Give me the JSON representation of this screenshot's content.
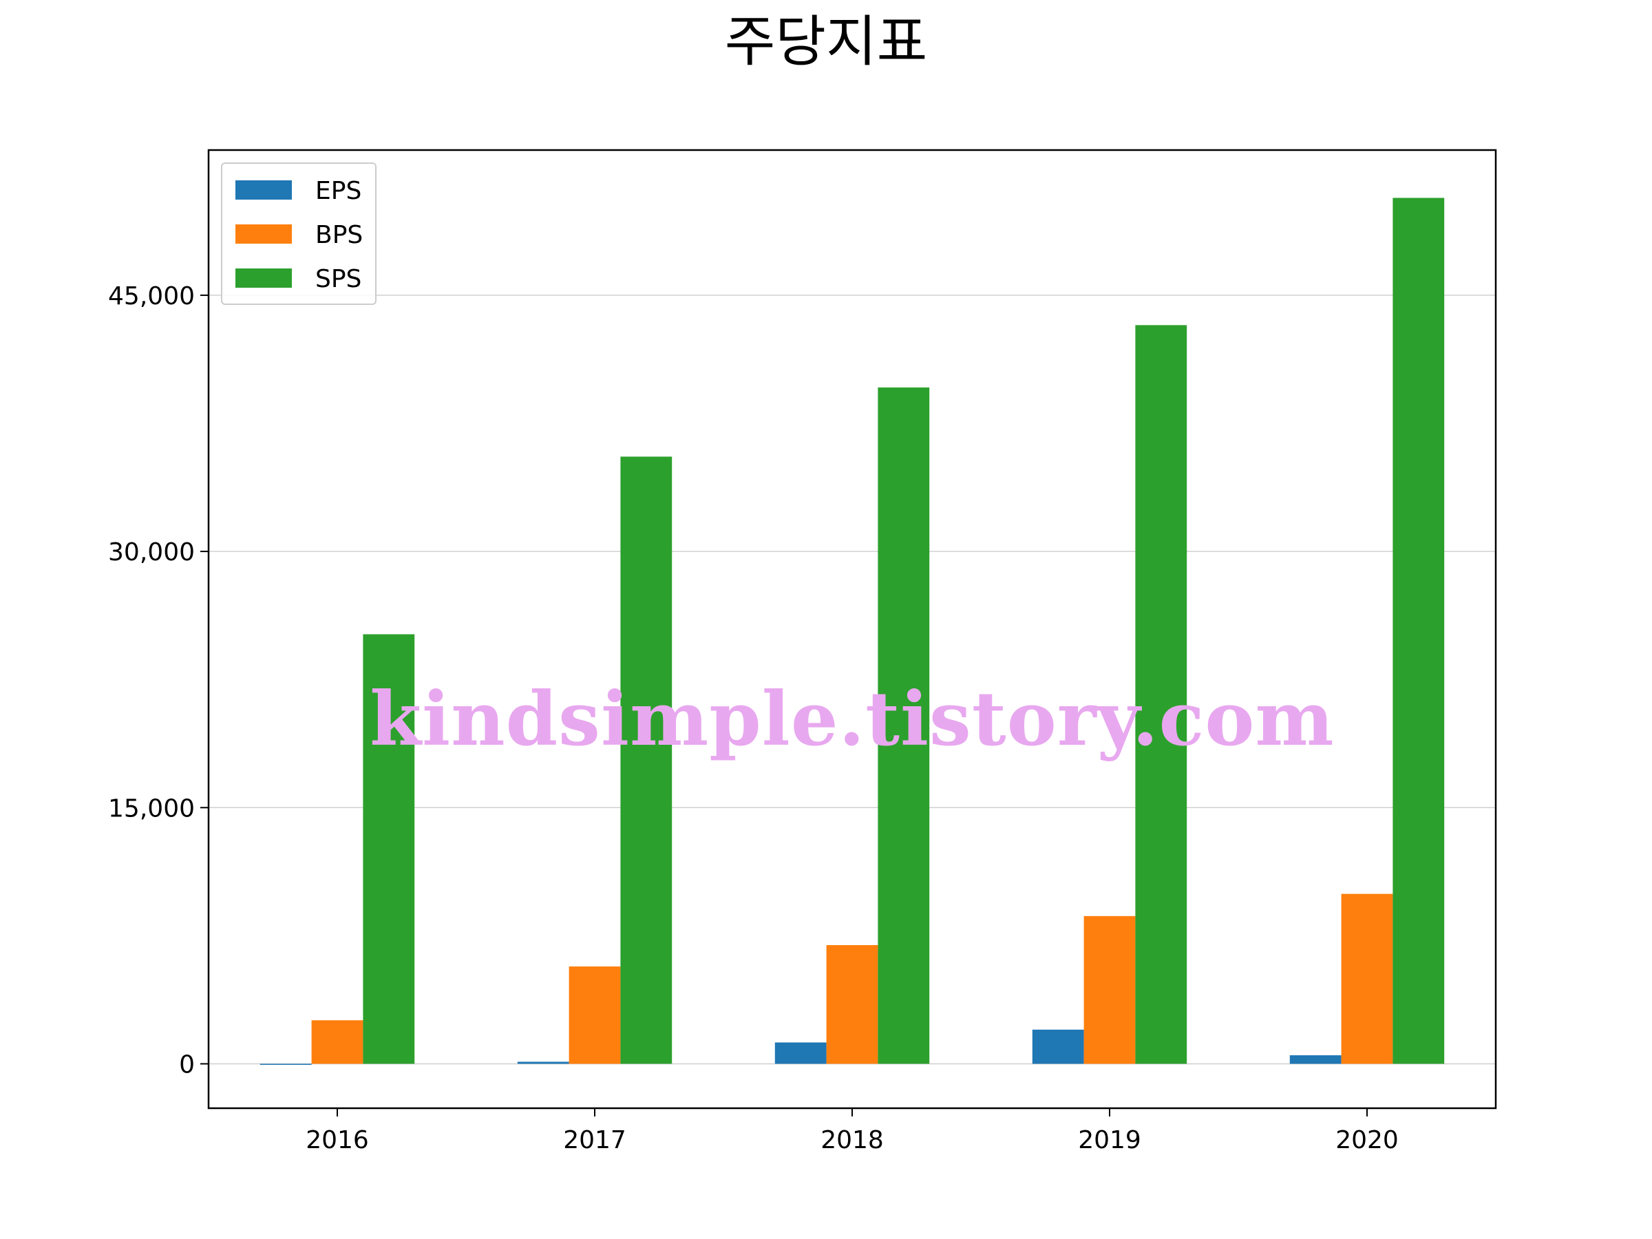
{
  "chart_data": {
    "type": "bar",
    "title": "주당지표",
    "categories": [
      "2016",
      "2017",
      "2018",
      "2019",
      "2020"
    ],
    "series": [
      {
        "name": "EPS",
        "color": "#1f77b4",
        "values": [
          -60,
          120,
          1250,
          2000,
          500
        ]
      },
      {
        "name": "BPS",
        "color": "#ff7f0e",
        "values": [
          2550,
          5700,
          6950,
          8650,
          9950
        ]
      },
      {
        "name": "SPS",
        "color": "#2ca02c",
        "values": [
          25150,
          35550,
          39600,
          43250,
          50700
        ]
      }
    ],
    "y_ticks": [
      0,
      15000,
      30000,
      45000
    ],
    "y_tick_labels": [
      "0",
      "15,000",
      "30,000",
      "45,000"
    ],
    "ylim": [
      -2600,
      53500
    ],
    "grid": "horizontal",
    "legend_position": "top-left",
    "xlabel": "",
    "ylabel": ""
  },
  "watermark": "kindsimple.tistory.com"
}
